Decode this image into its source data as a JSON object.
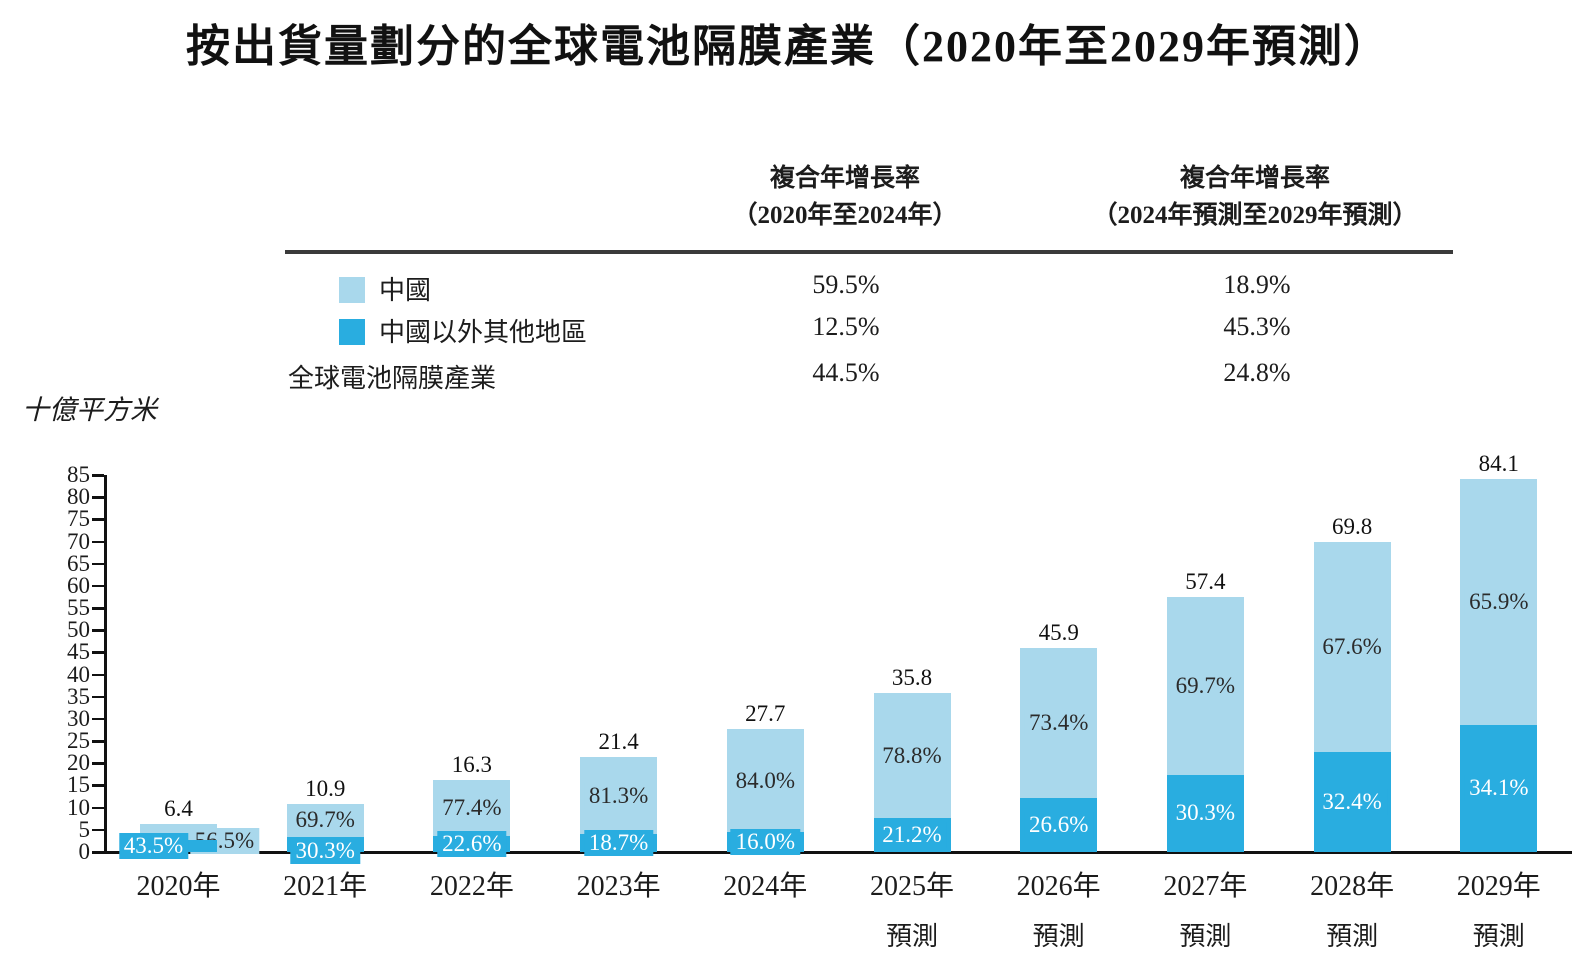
{
  "title": "按出貨量劃分的全球電池隔膜產業（2020年至2029年預測）",
  "y_axis_label": "十億平方米",
  "colors": {
    "china_light": "#A9D8EC",
    "non_china_dark": "#29ADE0",
    "text_dark": "#1c1c1c"
  },
  "table": {
    "col1_header_line1": "複合年增長率",
    "col1_header_line2": "（2020年至2024年）",
    "col2_header_line1": "複合年增長率",
    "col2_header_line2": "（2024年預測至2029年預測）",
    "rows": [
      {
        "label": "中國",
        "cagr_2020_2024": "59.5%",
        "cagr_2024_2029": "18.9%"
      },
      {
        "label": "中國以外其他地區",
        "cagr_2020_2024": "12.5%",
        "cagr_2024_2029": "45.3%"
      },
      {
        "label": "全球電池隔膜產業",
        "cagr_2020_2024": "44.5%",
        "cagr_2024_2029": "24.8%"
      }
    ]
  },
  "chart_data": {
    "type": "bar",
    "stacked": true,
    "categories": [
      "2020年",
      "2021年",
      "2022年",
      "2023年",
      "2024年",
      "2025年",
      "2026年",
      "2027年",
      "2028年",
      "2029年"
    ],
    "category_sub_labels": [
      "",
      "",
      "",
      "",
      "",
      "預測",
      "預測",
      "預測",
      "預測",
      "預測"
    ],
    "totals": [
      6.4,
      10.9,
      16.3,
      21.4,
      27.7,
      35.8,
      45.9,
      57.4,
      69.8,
      84.1
    ],
    "total_labels": [
      "6.4",
      "10.9",
      "16.3",
      "21.4",
      "27.7",
      "35.8",
      "45.9",
      "57.4",
      "69.8",
      "84.1"
    ],
    "series": [
      {
        "name": "中國",
        "color": "#A9D8EC",
        "share_pct": [
          56.5,
          69.7,
          77.4,
          81.3,
          84.0,
          78.8,
          73.4,
          69.7,
          67.6,
          65.9
        ],
        "share_labels": [
          "56.5%",
          "69.7%",
          "77.4%",
          "81.3%",
          "84.0%",
          "78.8%",
          "73.4%",
          "69.7%",
          "67.6%",
          "65.9%"
        ]
      },
      {
        "name": "中國以外其他地區",
        "color": "#29ADE0",
        "share_pct": [
          43.5,
          30.3,
          22.6,
          18.7,
          16.0,
          21.2,
          26.6,
          30.3,
          32.4,
          34.1
        ],
        "share_labels": [
          "43.5%",
          "30.3%",
          "22.6%",
          "18.7%",
          "16.0%",
          "21.2%",
          "26.6%",
          "30.3%",
          "32.4%",
          "34.1%"
        ]
      }
    ],
    "ylabel": "十億平方米",
    "ylim": [
      0,
      85
    ],
    "ytick_step": 5,
    "yticks": [
      0,
      5,
      10,
      15,
      20,
      25,
      30,
      35,
      40,
      45,
      50,
      55,
      60,
      65,
      70,
      75,
      80,
      85
    ],
    "legend_position": "table-left",
    "grid": false
  }
}
